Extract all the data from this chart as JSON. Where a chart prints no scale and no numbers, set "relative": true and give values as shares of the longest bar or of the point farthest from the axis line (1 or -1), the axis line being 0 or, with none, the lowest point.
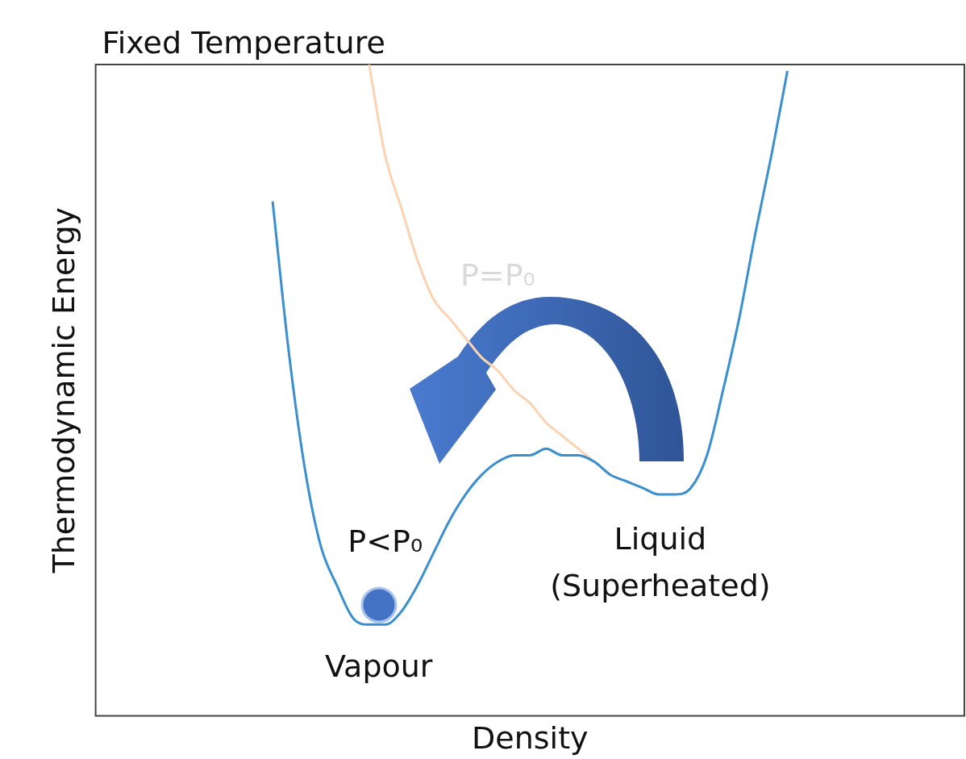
{
  "chart_data": {
    "type": "line",
    "title": "Fixed Temperature",
    "xlabel": "Density",
    "ylabel": "Thermodynamic Energy",
    "relative": true,
    "categories": [
      null,
      null,
      null,
      null,
      null,
      null,
      null,
      null,
      null,
      null,
      null,
      null,
      null,
      null,
      null,
      null,
      null,
      null,
      null,
      null,
      null,
      null,
      null,
      null,
      null,
      null,
      null,
      null,
      null,
      null,
      null,
      null,
      null,
      null,
      null,
      null,
      null,
      null,
      null,
      null,
      null,
      null,
      null,
      null,
      null,
      null,
      null,
      null,
      null,
      null,
      null,
      null,
      null,
      null,
      null
    ],
    "series": [
      {
        "name": "P<P₀",
        "color": "#3a8fd0",
        "values": [
          null,
          null,
          null,
          null,
          null,
          null,
          null,
          null,
          null,
          null,
          null,
          0.79,
          0.56,
          0.38,
          0.26,
          0.2,
          0.15,
          0.14,
          0.14,
          0.16,
          0.2,
          0.25,
          0.3,
          0.34,
          0.37,
          0.39,
          0.4,
          0.4,
          0.41,
          0.4,
          0.4,
          0.39,
          0.37,
          0.36,
          0.35,
          0.34,
          0.34,
          0.35,
          0.4,
          0.5,
          0.61,
          0.74,
          0.86,
          0.99,
          null,
          null,
          null,
          null,
          null,
          null,
          null,
          null,
          null,
          null,
          null
        ]
      },
      {
        "name": "P=P₀",
        "color": "#fbd3b3",
        "values": [
          null,
          null,
          null,
          null,
          null,
          null,
          null,
          null,
          null,
          null,
          null,
          null,
          null,
          null,
          null,
          null,
          null,
          1.0,
          0.86,
          0.78,
          0.7,
          0.64,
          0.61,
          0.58,
          0.55,
          0.53,
          0.5,
          0.48,
          0.45,
          0.43,
          0.41,
          0.39,
          0.37,
          null,
          null,
          null,
          null,
          null,
          null,
          null,
          null,
          null,
          null,
          null,
          null,
          null,
          null,
          null,
          null,
          null,
          null,
          null,
          null,
          null,
          null
        ]
      }
    ],
    "annotations": [
      "Vapour",
      "Liquid\n(Superheated)"
    ]
  }
}
